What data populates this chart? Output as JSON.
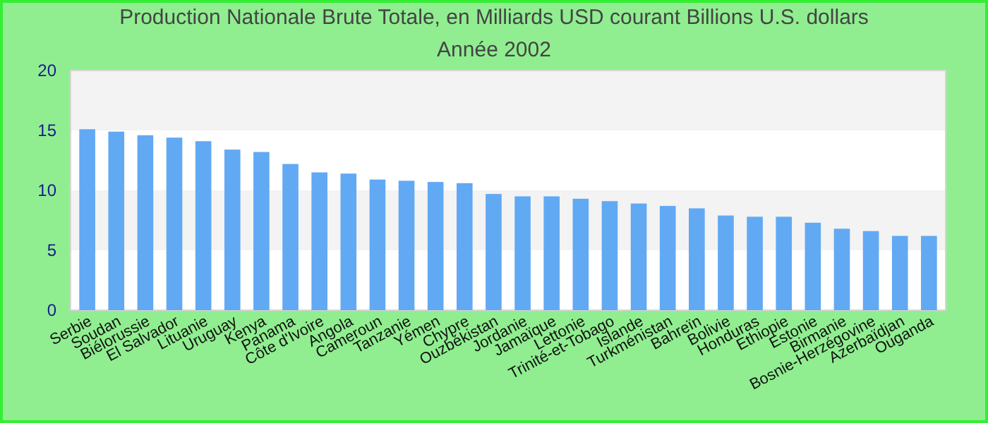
{
  "chart_data": {
    "type": "bar",
    "title": "Production Nationale Brute Totale, en Milliards USD courant Billions U.S. dollars",
    "subtitle": "Année 2002",
    "categories": [
      "Serbie",
      "Soudan",
      "Biélorussie",
      "El Salvador",
      "Lituanie",
      "Uruguay",
      "Kenya",
      "Panama",
      "Côte d'Ivoire",
      "Angola",
      "Cameroun",
      "Tanzanie",
      "Yémen",
      "Chypre",
      "Ouzbékistan",
      "Jordanie",
      "Jamaïque",
      "Lettonie",
      "Trinité-et-Tobago",
      "Islande",
      "Turkménistan",
      "Bahreïn",
      "Bolivie",
      "Honduras",
      "Ethiopie",
      "Estonie",
      "Birmanie",
      "Bosnie-Herzégovine",
      "Azerbaïdjan",
      "Ouganda"
    ],
    "values": [
      15.1,
      14.9,
      14.6,
      14.4,
      14.1,
      13.4,
      13.2,
      12.2,
      11.5,
      11.4,
      10.9,
      10.8,
      10.7,
      10.6,
      9.7,
      9.5,
      9.5,
      9.3,
      9.1,
      8.9,
      8.7,
      8.5,
      7.9,
      7.8,
      7.8,
      7.3,
      6.8,
      6.6,
      6.2,
      6.2
    ],
    "color": "#62a9f4",
    "ylim": [
      0,
      20
    ],
    "yticks": [
      0,
      5,
      10,
      15,
      20
    ],
    "bands": [
      {
        "axis": "y",
        "from": 5,
        "to": 10,
        "color": "#f3f3f3"
      },
      {
        "axis": "y",
        "from": 15,
        "to": 20,
        "color": "#f3f3f3"
      }
    ]
  }
}
